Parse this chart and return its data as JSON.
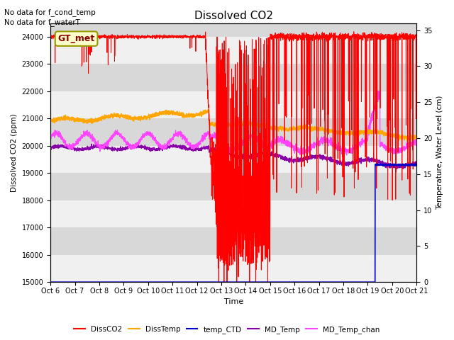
{
  "title": "Dissolved CO2",
  "xlabel": "Time",
  "ylabel_left": "Dissolved CO2 (ppm)",
  "ylabel_right": "Temperature, Water Level (cm)",
  "no_data_text": [
    "No data for f_cond_temp",
    "No data for f_waterT"
  ],
  "annotation_text": "GT_met",
  "ylim_left": [
    15000,
    24500
  ],
  "ylim_right": [
    0,
    36
  ],
  "yticks_left": [
    15000,
    16000,
    17000,
    18000,
    19000,
    20000,
    21000,
    22000,
    23000,
    24000
  ],
  "yticks_right": [
    0,
    5,
    10,
    15,
    20,
    25,
    30,
    35
  ],
  "xtick_labels": [
    "Oct 6",
    "Oct 7",
    "Oct 8",
    "Oct 9",
    "Oct 10",
    "Oct 11",
    "Oct 12",
    "Oct 13",
    "Oct 14",
    "Oct 15",
    "Oct 16",
    "Oct 17",
    "Oct 18",
    "Oct 19",
    "Oct 20",
    "Oct 21"
  ],
  "xtick_labels_display": [
    "Oct 6",
    "Oct 7",
    "Oct 8",
    "Oct 9",
    "Oct 10Oct 11Oct 12Oct 13Oct 14Oct 15Oct 16Oct 17Oct 18Oct 19Oct 20Oct 21"
  ],
  "colors": {
    "DissCO2": "#ff0000",
    "DissTemp": "#ffa500",
    "temp_CTD": "#0000cc",
    "MD_Temp": "#8800aa",
    "MD_Temp_chan": "#ff44ff"
  },
  "bg_stripe_dark": "#d8d8d8",
  "bg_stripe_light": "#f0f0f0"
}
